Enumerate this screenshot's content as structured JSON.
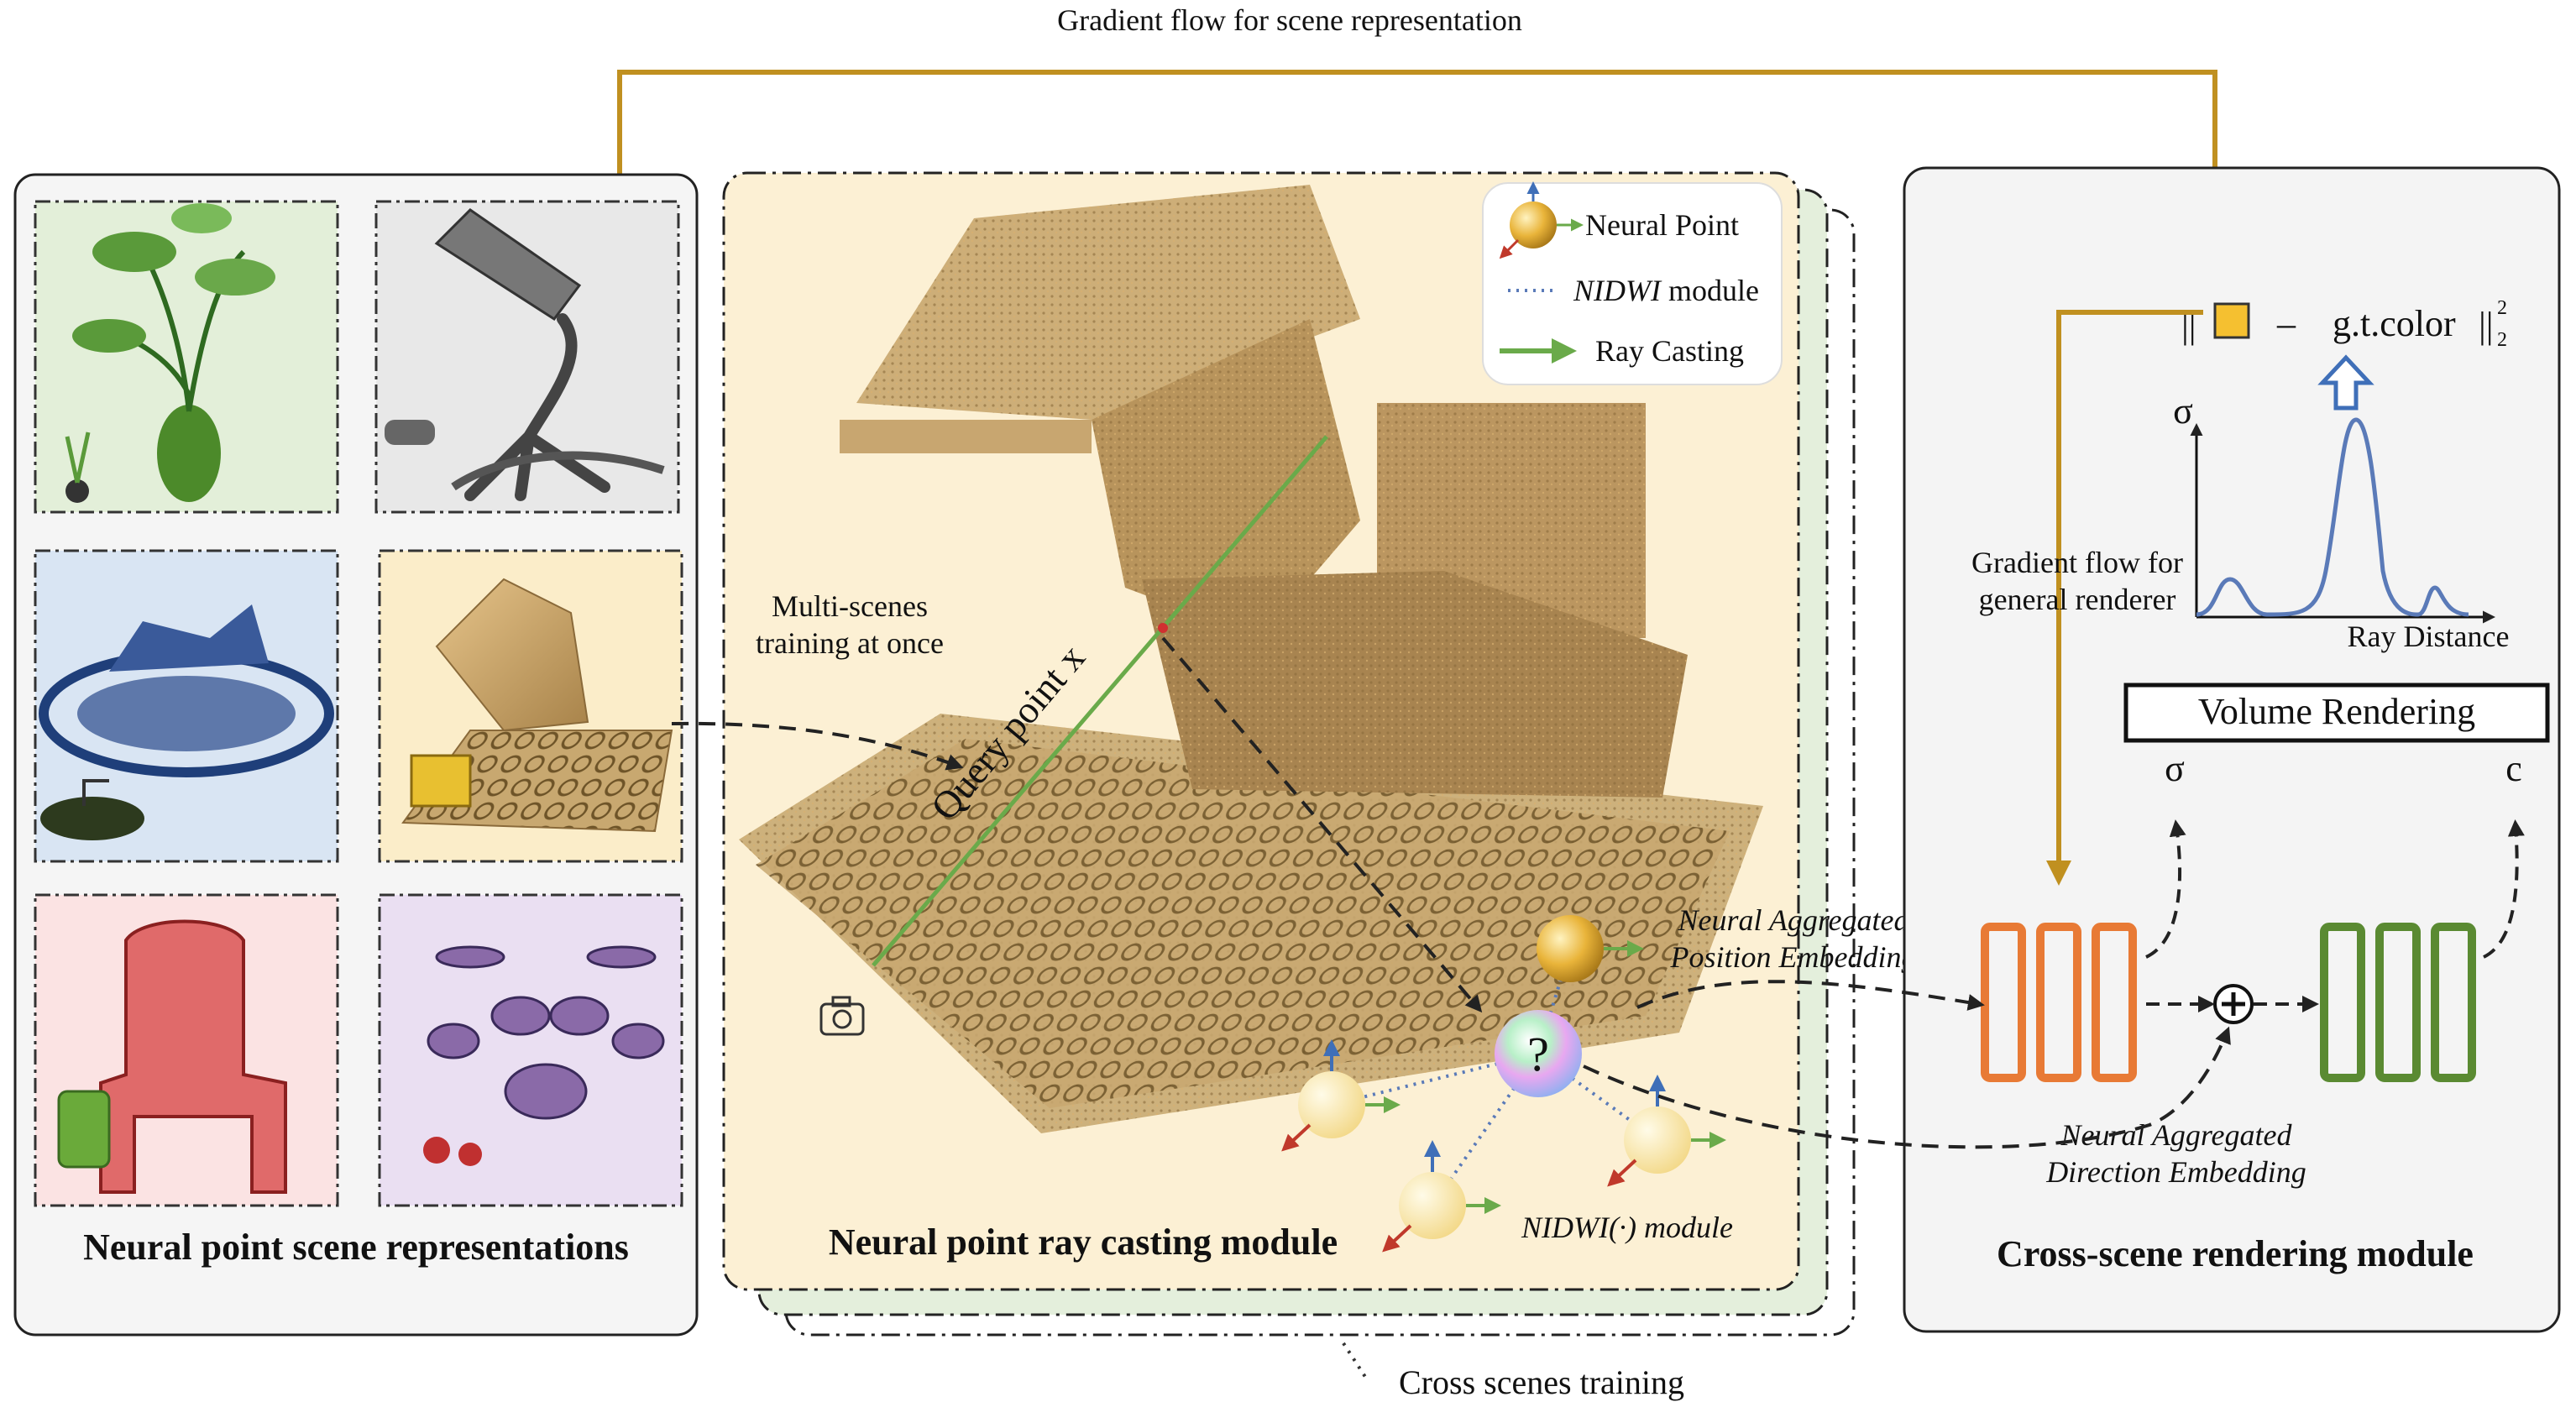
{
  "top_arrow_label": "Gradient flow for scene representation",
  "left_panel": {
    "title": "Neural point scene representations",
    "scenes": [
      {
        "name": "plant",
        "bg": "#e3efd9"
      },
      {
        "name": "microphone",
        "bg": "#e8e8e8"
      },
      {
        "name": "ship",
        "bg": "#d9e5f3"
      },
      {
        "name": "lego",
        "bg": "#fbedc9"
      },
      {
        "name": "chair",
        "bg": "#fbe3e3"
      },
      {
        "name": "drums",
        "bg": "#eadff2"
      }
    ]
  },
  "middle_panel": {
    "title": "Neural point ray casting module",
    "multi_scene_line1": "Multi-scenes",
    "multi_scene_line2": "training at once",
    "query_point": "Query point x",
    "neural_pos_line1": "Neural Aggregated",
    "neural_pos_line2": "Position Embedding",
    "nidwi_label": "NIDWI(·) module",
    "question_mark": "?",
    "bg": "#fcf0d4",
    "stack_bg": "#e4efdc"
  },
  "legend": {
    "items": [
      {
        "label": "Neural Point",
        "icon": "neural-point-icon"
      },
      {
        "label_italic": "NIDWI",
        "label_rest": " module",
        "icon": "dotted-line-icon"
      },
      {
        "label": "Ray Casting",
        "icon": "green-arrow-icon"
      }
    ]
  },
  "right_panel": {
    "title": "Cross-scene rendering module",
    "loss_open": "||",
    "loss_minus": "–",
    "loss_gt": "g.t.color",
    "loss_close": "||",
    "loss_sup": "2",
    "loss_sub": "2",
    "sigma_axis": "σ",
    "ray_distance": "Ray Distance",
    "volume_rendering": "Volume Rendering",
    "sigma_out": "σ",
    "c_out": "c",
    "gradient_line1": "Gradient flow for",
    "gradient_line2": "general renderer",
    "direction_line1": "Neural Aggregated",
    "direction_line2": "Direction Embedding",
    "bg": "#f4f4f4"
  },
  "cross_scenes_label": "Cross scenes training",
  "colors": {
    "gold": "#c09020",
    "mlp_orange": "#e87a35",
    "mlp_green": "#5a8a32",
    "ray_green": "#6aaa4a",
    "axis_arrow_blue": "#3f6fb8",
    "color_square": "#f5c030"
  }
}
